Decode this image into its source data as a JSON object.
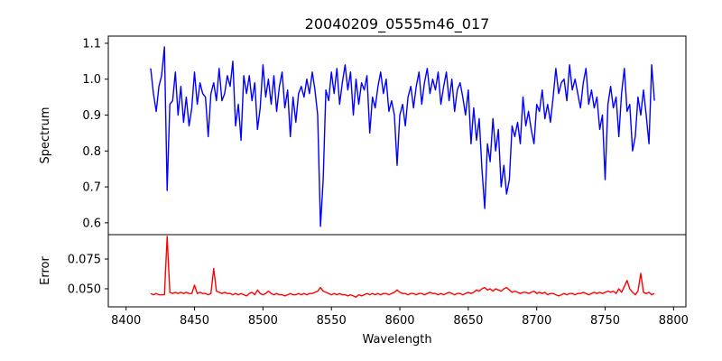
{
  "chart_data": [
    {
      "type": "line",
      "title": "20040209_0555m46_017",
      "xlabel": "",
      "ylabel": "Spectrum",
      "xlim": [
        8387,
        8809
      ],
      "ylim": [
        0.567,
        1.12
      ],
      "yticks": [
        0.6,
        0.7,
        0.8,
        0.9,
        1.0,
        1.1
      ],
      "ytick_labels": [
        "0.6",
        "0.7",
        "0.8",
        "0.9",
        "1.0",
        "1.1"
      ],
      "grid": false,
      "color": "#0000ff",
      "x_start": 8418,
      "x_step": 2,
      "values": [
        1.03,
        0.96,
        0.91,
        0.98,
        1.01,
        1.09,
        0.69,
        0.93,
        0.94,
        1.02,
        0.9,
        0.98,
        0.88,
        0.95,
        0.87,
        0.92,
        1.02,
        0.93,
        0.99,
        0.96,
        0.95,
        0.84,
        0.96,
        0.99,
        0.94,
        1.03,
        0.94,
        0.96,
        1.01,
        0.98,
        1.05,
        0.87,
        0.93,
        0.83,
        1.01,
        0.96,
        1.01,
        0.94,
        0.99,
        0.86,
        0.92,
        1.04,
        0.95,
        1.0,
        0.93,
        1.01,
        0.91,
        0.98,
        1.02,
        0.92,
        0.97,
        0.84,
        0.95,
        0.88,
        0.96,
        0.98,
        0.95,
        1.0,
        0.96,
        1.02,
        0.97,
        0.9,
        0.59,
        0.72,
        0.97,
        0.94,
        1.02,
        0.96,
        1.03,
        0.93,
        0.99,
        1.04,
        0.97,
        1.02,
        0.9,
        1.0,
        0.93,
        0.99,
        0.97,
        1.01,
        0.85,
        0.95,
        0.92,
        0.98,
        1.02,
        0.96,
        1.0,
        0.91,
        0.94,
        0.9,
        0.76,
        0.9,
        0.93,
        0.87,
        0.95,
        0.98,
        0.92,
        0.98,
        1.02,
        0.93,
        0.99,
        1.03,
        0.96,
        1.0,
        0.97,
        1.02,
        0.93,
        0.98,
        1.02,
        0.94,
        1.0,
        0.91,
        0.97,
        0.99,
        0.95,
        0.9,
        0.97,
        0.82,
        0.92,
        0.83,
        0.89,
        0.75,
        0.64,
        0.82,
        0.77,
        0.89,
        0.8,
        0.86,
        0.7,
        0.76,
        0.68,
        0.72,
        0.87,
        0.84,
        0.88,
        0.82,
        0.95,
        0.87,
        0.91,
        0.86,
        0.82,
        0.93,
        0.91,
        0.97,
        0.89,
        0.93,
        0.88,
        0.95,
        1.03,
        0.96,
        0.99,
        1.0,
        0.94,
        1.04,
        0.97,
        1.0,
        0.96,
        0.92,
        0.99,
        1.03,
        0.93,
        0.97,
        0.92,
        0.95,
        0.86,
        0.9,
        0.72,
        0.93,
        0.98,
        0.92,
        0.95,
        0.84,
        0.96,
        1.03,
        0.91,
        0.93,
        0.8,
        0.84,
        0.95,
        0.9,
        0.97,
        0.9,
        0.82,
        1.04,
        0.94
      ]
    },
    {
      "type": "line",
      "xlabel": "Wavelength",
      "ylabel": "Error",
      "xlim": [
        8387,
        8809
      ],
      "ylim": [
        0.0348,
        0.0955
      ],
      "xticks": [
        8400,
        8450,
        8500,
        8550,
        8600,
        8650,
        8700,
        8750,
        8800
      ],
      "xtick_labels": [
        "8400",
        "8450",
        "8500",
        "8550",
        "8600",
        "8650",
        "8700",
        "8750",
        "8800"
      ],
      "yticks": [
        0.05,
        0.075
      ],
      "ytick_labels": [
        "0.050",
        "0.075"
      ],
      "grid": false,
      "color": "#ff0000",
      "x_start": 8418,
      "x_step": 2,
      "values": [
        0.046,
        0.045,
        0.046,
        0.045,
        0.045,
        0.045,
        0.094,
        0.047,
        0.046,
        0.047,
        0.046,
        0.047,
        0.046,
        0.047,
        0.046,
        0.046,
        0.053,
        0.046,
        0.047,
        0.046,
        0.046,
        0.045,
        0.046,
        0.067,
        0.048,
        0.047,
        0.046,
        0.047,
        0.046,
        0.046,
        0.045,
        0.046,
        0.045,
        0.046,
        0.045,
        0.044,
        0.046,
        0.047,
        0.045,
        0.049,
        0.046,
        0.045,
        0.046,
        0.048,
        0.046,
        0.045,
        0.046,
        0.045,
        0.045,
        0.044,
        0.045,
        0.046,
        0.045,
        0.045,
        0.046,
        0.045,
        0.046,
        0.045,
        0.046,
        0.046,
        0.047,
        0.048,
        0.051,
        0.048,
        0.047,
        0.046,
        0.045,
        0.046,
        0.045,
        0.046,
        0.045,
        0.045,
        0.044,
        0.045,
        0.044,
        0.043,
        0.045,
        0.044,
        0.045,
        0.046,
        0.045,
        0.046,
        0.045,
        0.046,
        0.045,
        0.046,
        0.046,
        0.045,
        0.046,
        0.047,
        0.049,
        0.047,
        0.046,
        0.046,
        0.045,
        0.046,
        0.046,
        0.045,
        0.046,
        0.046,
        0.045,
        0.046,
        0.047,
        0.046,
        0.046,
        0.045,
        0.046,
        0.045,
        0.046,
        0.047,
        0.046,
        0.045,
        0.046,
        0.046,
        0.045,
        0.046,
        0.047,
        0.046,
        0.047,
        0.049,
        0.048,
        0.05,
        0.051,
        0.049,
        0.05,
        0.048,
        0.05,
        0.049,
        0.048,
        0.05,
        0.051,
        0.049,
        0.047,
        0.048,
        0.047,
        0.046,
        0.047,
        0.047,
        0.046,
        0.047,
        0.048,
        0.046,
        0.047,
        0.046,
        0.047,
        0.045,
        0.046,
        0.046,
        0.045,
        0.044,
        0.045,
        0.046,
        0.045,
        0.046,
        0.046,
        0.045,
        0.046,
        0.046,
        0.047,
        0.046,
        0.045,
        0.046,
        0.047,
        0.046,
        0.047,
        0.046,
        0.047,
        0.048,
        0.047,
        0.048,
        0.046,
        0.05,
        0.047,
        0.052,
        0.057,
        0.05,
        0.047,
        0.045,
        0.048,
        0.063,
        0.047,
        0.046,
        0.047,
        0.045,
        0.046
      ]
    }
  ]
}
